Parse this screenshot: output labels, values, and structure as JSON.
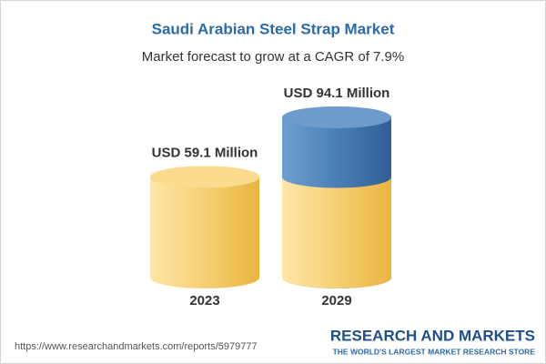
{
  "chart_data": {
    "type": "cylinder-bar",
    "title": "Saudi Arabian Steel Strap Market",
    "subtitle": "Market forecast to grow at a CAGR of 7.9%",
    "categories": [
      "2023",
      "2029"
    ],
    "values": [
      59.1,
      94.1
    ],
    "value_labels": [
      "USD 59.1 Million",
      "USD 94.1 Million"
    ],
    "colors": {
      "base": "#f3c555",
      "growth": "#4a80b8"
    },
    "source": "https://www.researchandmarkets.com/reports/5979777",
    "brand": "RESEARCH AND MARKETS",
    "tagline": "THE WORLD'S LARGEST MARKET RESEARCH STORE"
  }
}
